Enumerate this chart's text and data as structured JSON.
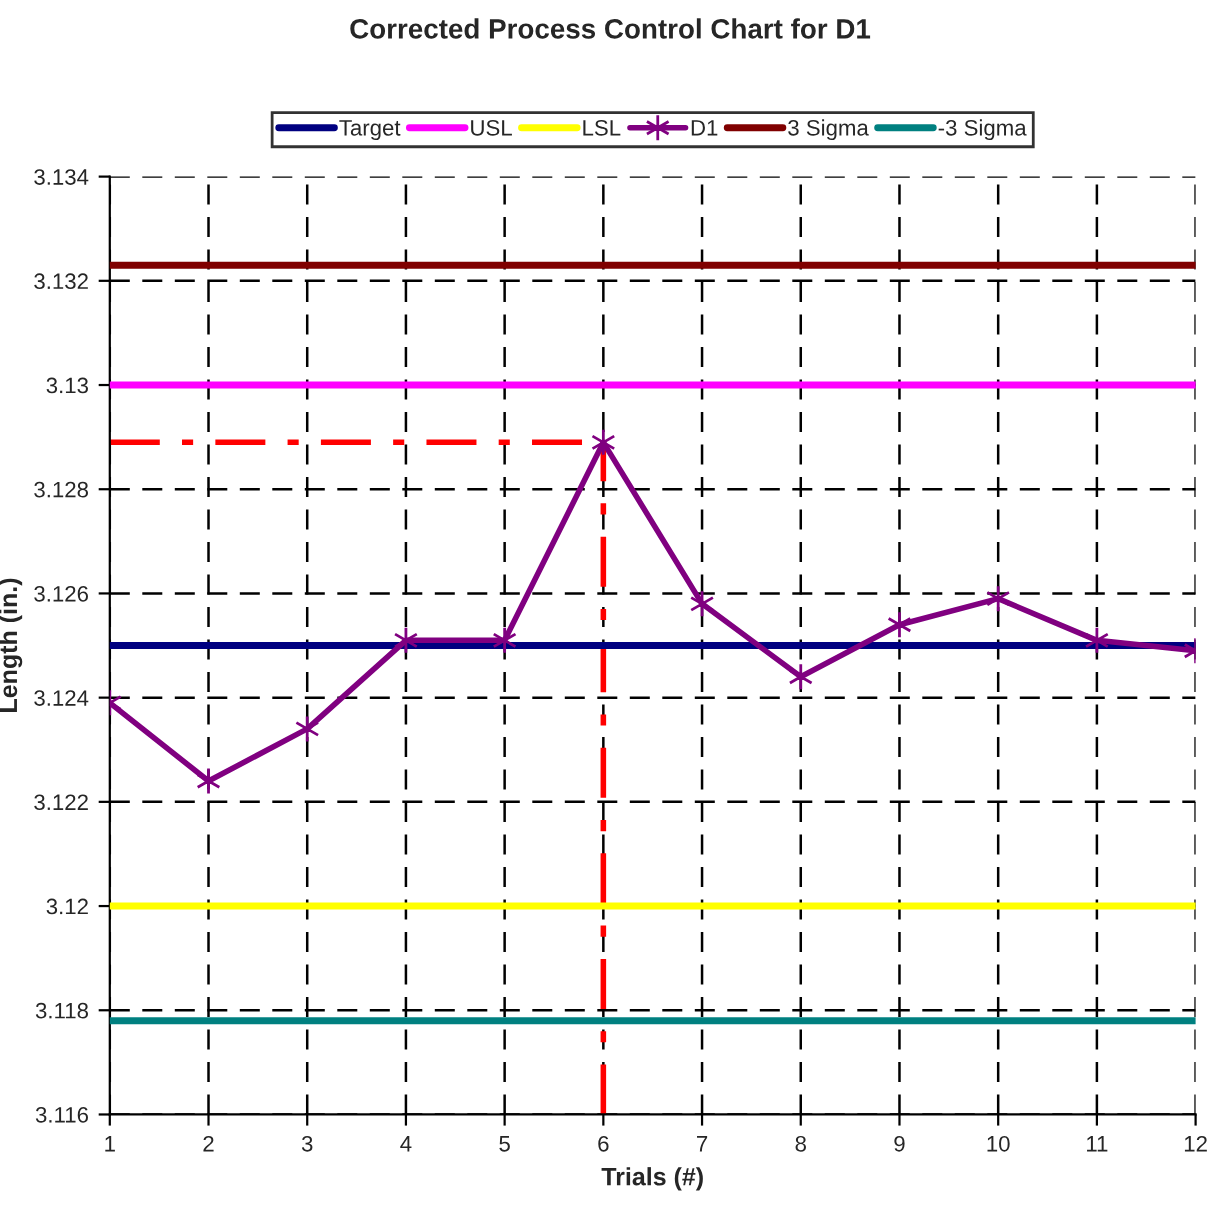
{
  "chart_data": {
    "type": "line",
    "title": "Corrected Process Control Chart for D1",
    "xlabel": "Trials (#)",
    "ylabel": "Length (in.)",
    "x": [
      1,
      2,
      3,
      4,
      5,
      6,
      7,
      8,
      9,
      10,
      11,
      12
    ],
    "series": [
      {
        "name": "Target",
        "color": "#000080",
        "marker": "none",
        "values": [
          3.125,
          3.125,
          3.125,
          3.125,
          3.125,
          3.125,
          3.125,
          3.125,
          3.125,
          3.125,
          3.125,
          3.125
        ]
      },
      {
        "name": "USL",
        "color": "#ff00ff",
        "marker": "none",
        "values": [
          3.13,
          3.13,
          3.13,
          3.13,
          3.13,
          3.13,
          3.13,
          3.13,
          3.13,
          3.13,
          3.13,
          3.13
        ]
      },
      {
        "name": "LSL",
        "color": "#ffff00",
        "marker": "none",
        "values": [
          3.12,
          3.12,
          3.12,
          3.12,
          3.12,
          3.12,
          3.12,
          3.12,
          3.12,
          3.12,
          3.12,
          3.12
        ]
      },
      {
        "name": "D1",
        "color": "#800080",
        "marker": "cross",
        "values": [
          3.1239,
          3.1224,
          3.1234,
          3.1251,
          3.1251,
          3.1289,
          3.1258,
          3.1244,
          3.1254,
          3.1259,
          3.1251,
          3.1249
        ]
      },
      {
        "name": "3 Sigma",
        "color": "#800000",
        "marker": "none",
        "values": [
          3.1323,
          3.1323,
          3.1323,
          3.1323,
          3.1323,
          3.1323,
          3.1323,
          3.1323,
          3.1323,
          3.1323,
          3.1323,
          3.1323
        ]
      },
      {
        "name": "-3 Sigma",
        "color": "#008080",
        "marker": "none",
        "values": [
          3.1178,
          3.1178,
          3.1178,
          3.1178,
          3.1178,
          3.1178,
          3.1178,
          3.1178,
          3.1178,
          3.1178,
          3.1178,
          3.1178
        ]
      }
    ],
    "ref_lines": [
      {
        "axis": "y",
        "value": 3.1289,
        "color": "#ff0000",
        "line_style": "dashed"
      },
      {
        "axis": "x",
        "value": 6,
        "color": "#ff0000",
        "line_style": "dashed"
      }
    ],
    "xlim": [
      1,
      12
    ],
    "xticks": [
      1,
      2,
      3,
      4,
      5,
      6,
      7,
      8,
      9,
      10,
      11,
      12
    ],
    "ylim": [
      3.116,
      3.134
    ],
    "yticks": [
      3.116,
      3.118,
      3.12,
      3.122,
      3.124,
      3.126,
      3.128,
      3.13,
      3.132,
      3.134
    ],
    "grid": true,
    "legend": "top",
    "line_style": "solid"
  }
}
